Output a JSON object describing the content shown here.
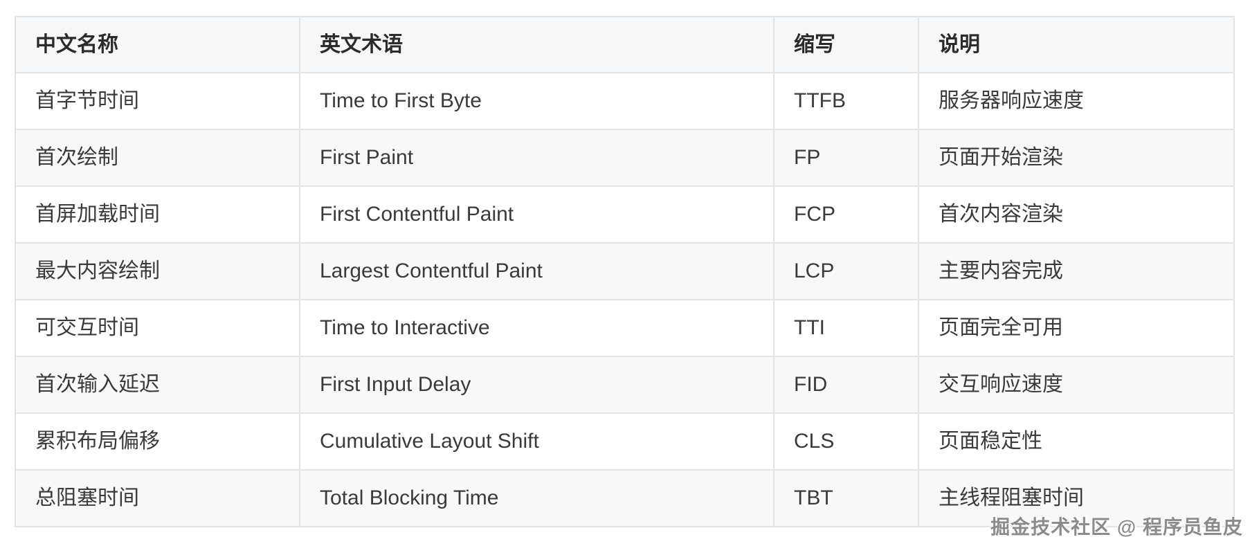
{
  "table": {
    "headers": [
      {
        "label": "中文名称"
      },
      {
        "label": "英文术语"
      },
      {
        "label": "缩写"
      },
      {
        "label": "说明"
      }
    ],
    "rows": [
      {
        "cn": "首字节时间",
        "en": "Time to First Byte",
        "abbr": "TTFB",
        "desc": "服务器响应速度"
      },
      {
        "cn": "首次绘制",
        "en": "First Paint",
        "abbr": "FP",
        "desc": "页面开始渲染"
      },
      {
        "cn": "首屏加载时间",
        "en": "First Contentful Paint",
        "abbr": "FCP",
        "desc": "首次内容渲染"
      },
      {
        "cn": "最大内容绘制",
        "en": "Largest Contentful Paint",
        "abbr": "LCP",
        "desc": "主要内容完成"
      },
      {
        "cn": "可交互时间",
        "en": "Time to Interactive",
        "abbr": "TTI",
        "desc": "页面完全可用"
      },
      {
        "cn": "首次输入延迟",
        "en": "First Input Delay",
        "abbr": "FID",
        "desc": "交互响应速度"
      },
      {
        "cn": "累积布局偏移",
        "en": "Cumulative Layout Shift",
        "abbr": "CLS",
        "desc": "页面稳定性"
      },
      {
        "cn": "总阻塞时间",
        "en": "Total Blocking Time",
        "abbr": "TBT",
        "desc": "主线程阻塞时间"
      }
    ]
  },
  "watermark": {
    "text": "掘金技术社区 @ 程序员鱼皮"
  },
  "colors": {
    "header_bg": "#f6f7f8",
    "stripe_bg": "#f8f8f9",
    "border": "#e2e3e5",
    "body_text": "#3a3a3a",
    "header_text": "#2b2b2b",
    "watermark_text": "#8b8b8b"
  }
}
